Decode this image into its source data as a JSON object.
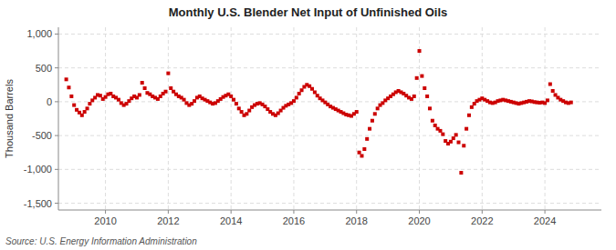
{
  "chart_data": {
    "type": "scatter",
    "title": "Monthly U.S. Blender Net Input of Unfinished Oils",
    "ylabel": "Thousand Barrels",
    "source": "Source: U.S. Energy Information Administration",
    "color": "#cc0000",
    "marker": "square",
    "grid": true,
    "xlim": [
      2008.5,
      2025.8
    ],
    "ylim": [
      -1600,
      1100
    ],
    "xticks": [
      2010,
      2012,
      2014,
      2016,
      2018,
      2020,
      2022,
      2024
    ],
    "yticks": [
      {
        "value": -1500,
        "label": "-1,500"
      },
      {
        "value": -1000,
        "label": "-1,000"
      },
      -500,
      0,
      500,
      {
        "value": 1000,
        "label": "1,000"
      }
    ],
    "x": [
      2008.75,
      2008.833,
      2008.917,
      2009.0,
      2009.083,
      2009.167,
      2009.25,
      2009.333,
      2009.417,
      2009.5,
      2009.583,
      2009.667,
      2009.75,
      2009.833,
      2009.917,
      2010.0,
      2010.083,
      2010.167,
      2010.25,
      2010.333,
      2010.417,
      2010.5,
      2010.583,
      2010.667,
      2010.75,
      2010.833,
      2010.917,
      2011.0,
      2011.083,
      2011.167,
      2011.25,
      2011.333,
      2011.417,
      2011.5,
      2011.583,
      2011.667,
      2011.75,
      2011.833,
      2011.917,
      2012.0,
      2012.083,
      2012.167,
      2012.25,
      2012.333,
      2012.417,
      2012.5,
      2012.583,
      2012.667,
      2012.75,
      2012.833,
      2012.917,
      2013.0,
      2013.083,
      2013.167,
      2013.25,
      2013.333,
      2013.417,
      2013.5,
      2013.583,
      2013.667,
      2013.75,
      2013.833,
      2013.917,
      2014.0,
      2014.083,
      2014.167,
      2014.25,
      2014.333,
      2014.417,
      2014.5,
      2014.583,
      2014.667,
      2014.75,
      2014.833,
      2014.917,
      2015.0,
      2015.083,
      2015.167,
      2015.25,
      2015.333,
      2015.417,
      2015.5,
      2015.583,
      2015.667,
      2015.75,
      2015.833,
      2015.917,
      2016.0,
      2016.083,
      2016.167,
      2016.25,
      2016.333,
      2016.417,
      2016.5,
      2016.583,
      2016.667,
      2016.75,
      2016.833,
      2016.917,
      2017.0,
      2017.083,
      2017.167,
      2017.25,
      2017.333,
      2017.417,
      2017.5,
      2017.583,
      2017.667,
      2017.75,
      2017.833,
      2017.917,
      2018.0,
      2018.083,
      2018.167,
      2018.25,
      2018.333,
      2018.417,
      2018.5,
      2018.583,
      2018.667,
      2018.75,
      2018.833,
      2018.917,
      2019.0,
      2019.083,
      2019.167,
      2019.25,
      2019.333,
      2019.417,
      2019.5,
      2019.583,
      2019.667,
      2019.75,
      2019.833,
      2019.917,
      2020.0,
      2020.083,
      2020.167,
      2020.25,
      2020.333,
      2020.417,
      2020.5,
      2020.583,
      2020.667,
      2020.75,
      2020.833,
      2020.917,
      2021.0,
      2021.083,
      2021.167,
      2021.25,
      2021.333,
      2021.417,
      2021.5,
      2021.583,
      2021.667,
      2021.75,
      2021.833,
      2021.917,
      2022.0,
      2022.083,
      2022.167,
      2022.25,
      2022.333,
      2022.417,
      2022.5,
      2022.583,
      2022.667,
      2022.75,
      2022.833,
      2022.917,
      2023.0,
      2023.083,
      2023.167,
      2023.25,
      2023.333,
      2023.417,
      2023.5,
      2023.583,
      2023.667,
      2023.75,
      2023.833,
      2023.917,
      2024.0,
      2024.083,
      2024.167,
      2024.25,
      2024.333,
      2024.417,
      2024.5,
      2024.583,
      2024.667,
      2024.75,
      2024.833
    ],
    "values": [
      330,
      210,
      80,
      -50,
      -120,
      -160,
      -200,
      -150,
      -100,
      -30,
      20,
      60,
      100,
      90,
      40,
      70,
      110,
      120,
      80,
      60,
      30,
      -20,
      -50,
      -30,
      10,
      50,
      80,
      60,
      100,
      280,
      200,
      130,
      110,
      80,
      60,
      40,
      80,
      120,
      150,
      420,
      200,
      150,
      110,
      80,
      60,
      30,
      -20,
      -50,
      -30,
      10,
      60,
      80,
      50,
      30,
      10,
      -10,
      -30,
      -20,
      10,
      40,
      70,
      90,
      110,
      80,
      30,
      -30,
      -100,
      -150,
      -200,
      -180,
      -130,
      -80,
      -50,
      -30,
      -20,
      -40,
      -70,
      -110,
      -150,
      -180,
      -200,
      -170,
      -130,
      -90,
      -60,
      -40,
      -20,
      10,
      60,
      120,
      170,
      220,
      250,
      230,
      190,
      140,
      90,
      50,
      20,
      -10,
      -40,
      -70,
      -90,
      -110,
      -130,
      -150,
      -170,
      -190,
      -200,
      -210,
      -180,
      -150,
      -750,
      -800,
      -700,
      -550,
      -400,
      -280,
      -180,
      -100,
      -50,
      -20,
      20,
      50,
      80,
      110,
      140,
      160,
      140,
      120,
      90,
      60,
      40,
      80,
      350,
      750,
      380,
      200,
      80,
      -100,
      -280,
      -350,
      -400,
      -430,
      -480,
      -580,
      -620,
      -590,
      -540,
      -490,
      -600,
      -1050,
      -650,
      -400,
      -200,
      -80,
      -30,
      10,
      30,
      50,
      30,
      10,
      -10,
      -20,
      -10,
      10,
      20,
      30,
      20,
      10,
      0,
      -10,
      -20,
      -30,
      -20,
      -10,
      0,
      10,
      5,
      -5,
      -10,
      -15,
      -10,
      -20,
      20,
      260,
      160,
      100,
      60,
      30,
      10,
      -10,
      -20,
      -10
    ]
  }
}
